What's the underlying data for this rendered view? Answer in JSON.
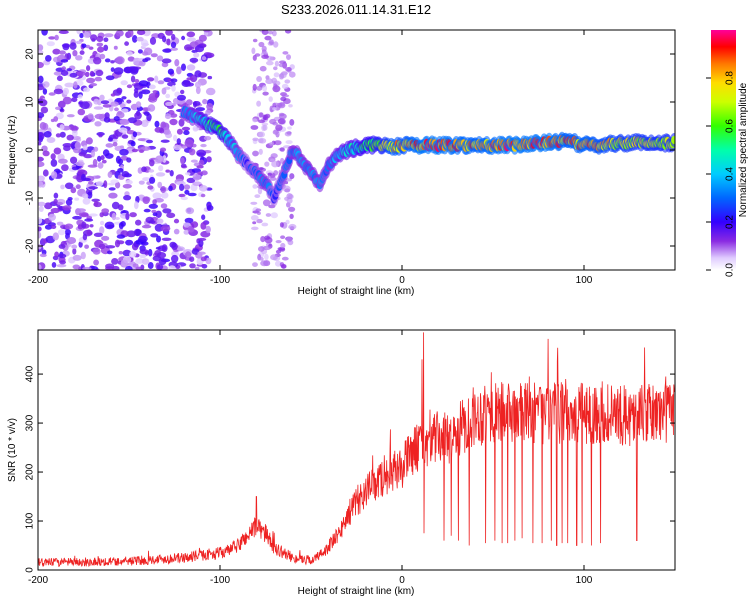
{
  "chart_data": [
    {
      "type": "heatmap",
      "title": "S233.2026.011.14.31.E12",
      "xlabel": "Height of straight line (km)",
      "ylabel": "Frequency (Hz)",
      "xlim": [
        -200,
        150
      ],
      "ylim": [
        -25,
        25
      ],
      "xticks": [
        -200,
        -100,
        0,
        100
      ],
      "xtick_labels": [
        "-200",
        "-100",
        "0",
        "100"
      ],
      "yticks": [
        -20,
        -10,
        0,
        10,
        20
      ],
      "ytick_labels": [
        "-20",
        "-10",
        "0",
        "10",
        "20"
      ],
      "colorbar": {
        "label": "Normalized spectral amplitude",
        "range": [
          0,
          1
        ],
        "ticks": [
          0.0,
          0.2,
          0.4,
          0.6,
          0.8
        ],
        "tick_labels": [
          "0.0",
          "0.2",
          "0.4",
          "0.6",
          "0.8"
        ],
        "colormap": "rainbow (white - violet - blue - cyan - green - yellow - orange - red - magenta)"
      },
      "ridge": {
        "description": "dominant frequency track vs height",
        "x": [
          -120,
          -110,
          -100,
          -95,
          -90,
          -85,
          -80,
          -75,
          -70,
          -60,
          -55,
          -50,
          -45,
          -42,
          -40,
          -35,
          -30,
          -20,
          -10,
          -5,
          0,
          10,
          20,
          40,
          60,
          80,
          90,
          100,
          110,
          120,
          150
        ],
        "y": [
          8,
          6,
          4,
          2,
          -1,
          -3,
          -5,
          -7,
          -10,
          0,
          -2,
          -5,
          -7,
          -5,
          -3,
          -1,
          0,
          1,
          1,
          0.5,
          1,
          1,
          1,
          1,
          1,
          1.5,
          2,
          1,
          1,
          1.5,
          1.5
        ],
        "amplitude": [
          0.3,
          0.45,
          0.55,
          0.45,
          0.35,
          0.25,
          0.3,
          0.35,
          0.25,
          0.35,
          0.35,
          0.35,
          0.35,
          0.3,
          0.35,
          0.4,
          0.45,
          0.55,
          0.7,
          0.85,
          0.8,
          0.9,
          0.9,
          0.85,
          0.9,
          0.9,
          0.85,
          0.85,
          0.8,
          0.75,
          0.7
        ]
      },
      "noise_region": {
        "x_from": -200,
        "x_to": -105,
        "amplitude": "0.05-0.25 scattered across all frequencies"
      }
    },
    {
      "type": "line",
      "title": "",
      "xlabel": "Height of straight line (km)",
      "ylabel": "SNR (10 * v/v)",
      "xlim": [
        -200,
        150
      ],
      "ylim": [
        0,
        490
      ],
      "xticks": [
        -200,
        -100,
        0,
        100
      ],
      "xtick_labels": [
        "-200",
        "-100",
        "0",
        "100"
      ],
      "yticks": [
        0,
        100,
        200,
        300,
        400
      ],
      "ytick_labels": [
        "0",
        "100",
        "200",
        "300",
        "400"
      ],
      "series": [
        {
          "name": "SNR",
          "color": "#ee2222",
          "envelope_x": [
            -200,
            -150,
            -120,
            -110,
            -100,
            -95,
            -90,
            -85,
            -80,
            -75,
            -70,
            -60,
            -50,
            -45,
            -40,
            -35,
            -30,
            -25,
            -20,
            -15,
            -10,
            -5,
            0,
            5,
            10,
            15,
            20,
            25,
            30,
            35,
            40,
            50,
            60,
            70,
            80,
            90,
            100,
            110,
            120,
            130,
            140,
            150
          ],
          "envelope_y": [
            15,
            18,
            25,
            30,
            35,
            40,
            50,
            70,
            90,
            75,
            45,
            25,
            20,
            30,
            50,
            70,
            110,
            140,
            160,
            175,
            190,
            200,
            210,
            240,
            255,
            265,
            270,
            270,
            280,
            300,
            315,
            320,
            320,
            320,
            320,
            320,
            320,
            320,
            315,
            315,
            320,
            325
          ],
          "spikes": [
            {
              "x": -80,
              "y": 150
            },
            {
              "x": 12,
              "y": 485
            },
            {
              "x": 11,
              "y": 430
            },
            {
              "x": 70,
              "y": 395
            },
            {
              "x": 90,
              "y": 390
            },
            {
              "x": 110,
              "y": 385
            },
            {
              "x": 145,
              "y": 395
            }
          ],
          "dropouts_x": [
            12,
            23,
            27,
            31,
            37,
            46,
            51,
            55,
            58,
            62,
            66,
            72,
            77,
            82,
            85,
            88,
            91,
            96,
            99,
            104,
            109,
            129
          ],
          "dropout_depth": [
            75,
            60,
            70,
            60,
            50,
            55,
            60,
            55,
            55,
            60,
            65,
            55,
            55,
            60,
            50,
            55,
            55,
            50,
            55,
            50,
            55,
            60
          ]
        }
      ]
    }
  ]
}
